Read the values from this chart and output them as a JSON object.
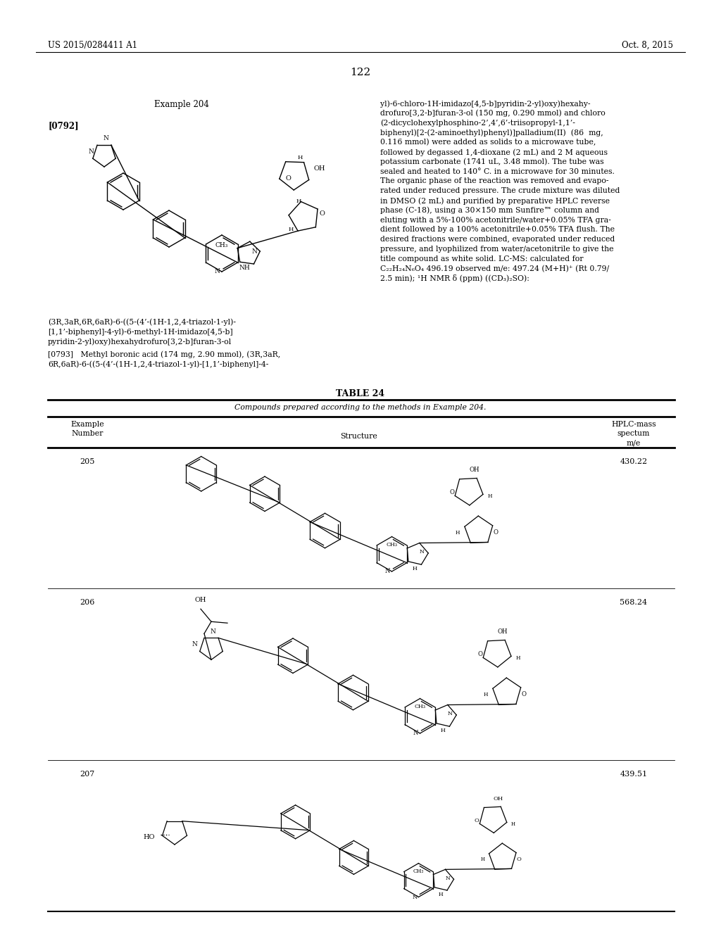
{
  "page_header_left": "US 2015/0284411 A1",
  "page_header_right": "Oct. 8, 2015",
  "page_number": "122",
  "example_label": "Example 204",
  "paragraph_label1": "[0792]",
  "paragraph_label2": "[0793]",
  "compound_name_line1": "(3R,3aR,6R,6aR)-6-((5-(4’-(1H-1,2,4-triazol-1-yl)-",
  "compound_name_line2": "[1,1’-biphenyl]-4-yl)-6-methyl-1H-imidazo[4,5-b]",
  "compound_name_line3": "pyridin-2-yl)oxy)hexahydrofuro[3,2-b]furan-3-ol",
  "right_text_lines": [
    "yl)-6-chloro-1H-imidazo[4,5-b]pyridin-2-yl)oxy)hexahy-",
    "drofuro[3,2-b]furan-3-ol (150 mg, 0.290 mmol) and chloro",
    "(2-dicyclohexylphosphino-2’,4’,6’-triisopropyl-1,1’-",
    "biphenyl)[2-(2-aminoethyl)phenyl)]palladium(II)  (86  mg,",
    "0.116 mmol) were added as solids to a microwave tube,",
    "followed by degassed 1,4-dioxane (2 mL) and 2 M aqueous",
    "potassium carbonate (1741 uL, 3.48 mmol). The tube was",
    "sealed and heated to 140° C. in a microwave for 30 minutes.",
    "The organic phase of the reaction was removed and evapo-",
    "rated under reduced pressure. The crude mixture was diluted",
    "in DMSO (2 mL) and purified by preparative HPLC reverse",
    "phase (C-18), using a 30×150 mm Sunfire™ column and",
    "eluting with a 5%-100% acetonitrile/water+0.05% TFA gra-",
    "dient followed by a 100% acetonitrile+0.05% TFA flush. The",
    "desired fractions were combined, evaporated under reduced",
    "pressure, and lyophilized from water/acetonitrile to give the",
    "title compound as white solid. LC-MS: calculated for",
    "C₂₂H₂₄N₆O₄ 496.19 observed m/e: 497.24 (M+H)⁺ (Rt 0.79/",
    "2.5 min); ¹H NMR δ (ppm) ((CD₃)₂SO):"
  ],
  "p0793_line1": "[0793]   Methyl boronic acid (174 mg, 2.90 mmol), (3R,3aR,",
  "p0793_line2": "6R,6aR)-6-((5-(4’-(1H-1,2,4-triazol-1-yl)-[1,1’-biphenyl]-4-",
  "table_title": "TABLE 24",
  "table_subtitle": "Compounds prepared according to the methods in Example 204.",
  "col1_header_line1": "Example",
  "col1_header_line2": "Number",
  "col2_header": "Structure",
  "col3_header_line1": "HPLC-mass",
  "col3_header_line2": "spectum",
  "col3_header_line3": "m/e",
  "row1_num": "205",
  "row1_val": "430.22",
  "row2_num": "206",
  "row2_val": "568.24",
  "row3_num": "207",
  "row3_val": "439.51",
  "bg_color": "#ffffff",
  "text_color": "#000000"
}
